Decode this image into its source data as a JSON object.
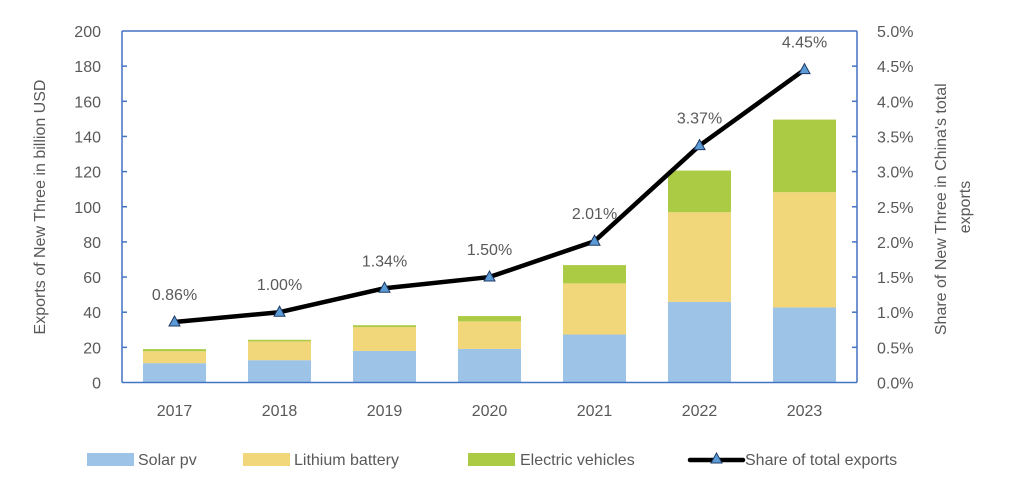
{
  "chart_data": {
    "type": "bar",
    "subtype": "stacked-bar-with-line",
    "categories": [
      "2017",
      "2018",
      "2019",
      "2020",
      "2021",
      "2022",
      "2023"
    ],
    "series": [
      {
        "name": "Solar pv",
        "type": "bar",
        "axis": "left",
        "color": "#9DC3E6",
        "values": [
          11.0,
          12.7,
          18.0,
          19.1,
          27.3,
          45.9,
          42.7
        ]
      },
      {
        "name": "Lithium battery",
        "type": "bar",
        "axis": "left",
        "color": "#F1D67A",
        "values": [
          6.8,
          10.7,
          13.5,
          15.7,
          29.1,
          51.0,
          65.6
        ]
      },
      {
        "name": "Electric vehicles",
        "type": "bar",
        "axis": "left",
        "color": "#ABCB44",
        "values": [
          1.2,
          0.9,
          1.1,
          3.0,
          10.4,
          23.7,
          41.3
        ]
      },
      {
        "name": "Share of total exports",
        "type": "line",
        "axis": "right",
        "color": "#000000",
        "marker": "triangle",
        "marker_color": "#5B9BD5",
        "values": [
          0.86,
          1.0,
          1.34,
          1.5,
          2.01,
          3.37,
          4.45
        ],
        "data_labels": [
          "0.86%",
          "1.00%",
          "1.34%",
          "1.50%",
          "2.01%",
          "3.37%",
          "4.45%"
        ]
      }
    ],
    "title": "",
    "xlabel": "",
    "ylabel": "Exports of New Three in billion USD",
    "y2label_lines": [
      "Share of New Three in China's total",
      "exports"
    ],
    "ylim": [
      0,
      200
    ],
    "y2lim": [
      0,
      5.0
    ],
    "yticks": [
      "0",
      "20",
      "40",
      "60",
      "80",
      "100",
      "120",
      "140",
      "160",
      "180",
      "200"
    ],
    "y2ticks": [
      "0.0%",
      "0.5%",
      "1.0%",
      "1.5%",
      "2.0%",
      "2.5%",
      "3.0%",
      "3.5%",
      "4.0%",
      "4.5%",
      "5.0%"
    ],
    "grid": false,
    "legend_position": "bottom",
    "axis_color": "#4472C4"
  }
}
